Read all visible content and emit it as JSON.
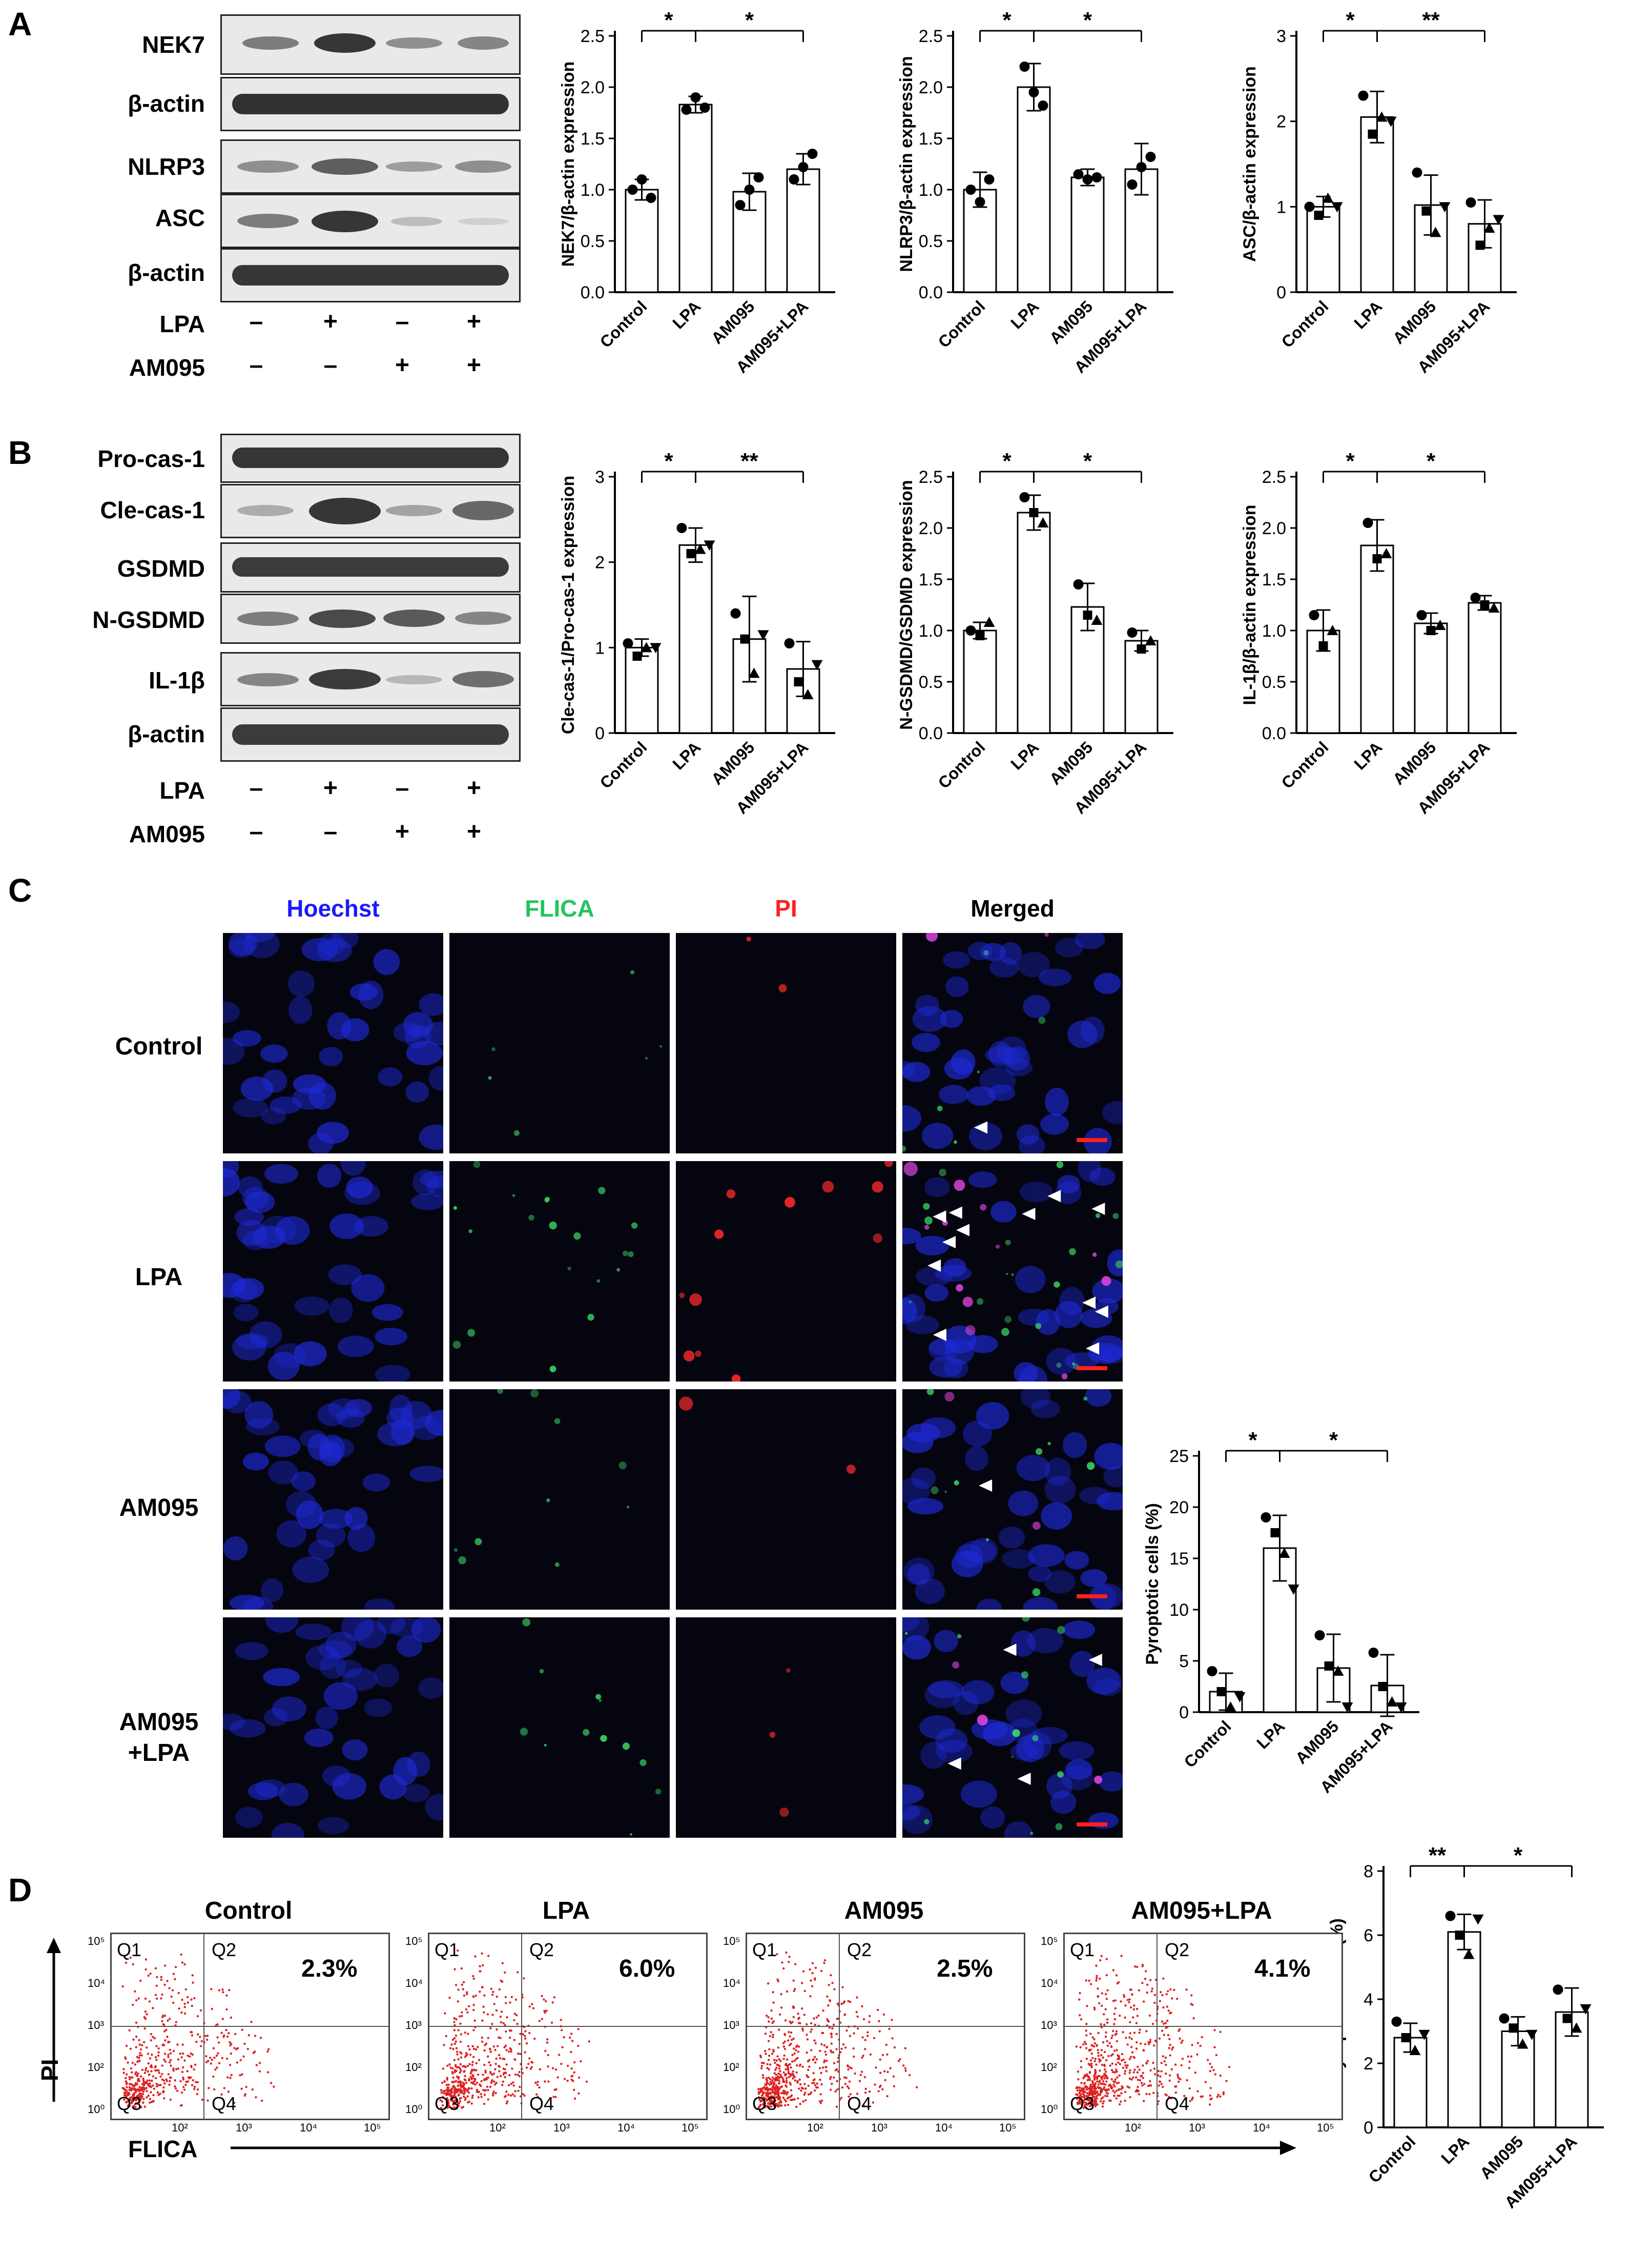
{
  "panels": {
    "a": "A",
    "b": "B",
    "c": "C",
    "d": "D"
  },
  "blot_a": {
    "proteins": [
      "NEK7",
      "β-actin",
      "NLRP3",
      "ASC",
      "β-actin"
    ],
    "treatments": [
      {
        "name": "LPA",
        "signs": [
          "–",
          "+",
          "–",
          "+"
        ]
      },
      {
        "name": "AM095",
        "signs": [
          "–",
          "–",
          "+",
          "+"
        ]
      }
    ]
  },
  "blot_b": {
    "proteins": [
      "Pro-cas-1",
      "Cle-cas-1",
      "GSDMD",
      "N-GSDMD",
      "IL-1β",
      "β-actin"
    ],
    "treatments": [
      {
        "name": "LPA",
        "signs": [
          "–",
          "+",
          "–",
          "+"
        ]
      },
      {
        "name": "AM095",
        "signs": [
          "–",
          "–",
          "+",
          "+"
        ]
      }
    ]
  },
  "chart_data": [
    {
      "type": "bar",
      "panel": "A",
      "categories": [
        "Control",
        "LPA",
        "AM095",
        "AM095+LPA"
      ],
      "values": [
        1.0,
        1.83,
        0.98,
        1.2
      ],
      "errors": [
        0.1,
        0.08,
        0.18,
        0.15
      ],
      "points": [
        [
          1.0,
          1.1,
          0.92
        ],
        [
          1.78,
          1.9,
          1.8
        ],
        [
          0.85,
          1.0,
          1.12
        ],
        [
          1.1,
          1.22,
          1.35
        ]
      ],
      "marker": "circle",
      "ylabel": "NEK7/β-actin expression",
      "ylim": [
        0,
        2.5
      ],
      "yticks": [
        "0.0",
        "0.5",
        "1.0",
        "1.5",
        "2.0",
        "2.5"
      ],
      "sig": [
        {
          "from": 0,
          "to": 1,
          "label": "*"
        },
        {
          "from": 1,
          "to": 3,
          "label": "*"
        }
      ]
    },
    {
      "type": "bar",
      "panel": "A",
      "categories": [
        "Control",
        "LPA",
        "AM095",
        "AM095+LPA"
      ],
      "values": [
        1.0,
        2.0,
        1.12,
        1.2
      ],
      "errors": [
        0.17,
        0.23,
        0.08,
        0.25
      ],
      "points": [
        [
          1.0,
          0.88,
          1.1
        ],
        [
          2.2,
          1.95,
          1.82
        ],
        [
          1.15,
          1.1,
          1.12
        ],
        [
          1.05,
          1.22,
          1.32
        ]
      ],
      "marker": "circle",
      "ylabel": "NLRP3/β-actin expression",
      "ylim": [
        0,
        2.5
      ],
      "yticks": [
        "0.0",
        "0.5",
        "1.0",
        "1.5",
        "2.0",
        "2.5"
      ],
      "sig": [
        {
          "from": 0,
          "to": 1,
          "label": "*"
        },
        {
          "from": 1,
          "to": 3,
          "label": "*"
        }
      ]
    },
    {
      "type": "bar",
      "panel": "A",
      "categories": [
        "Control",
        "LPA",
        "AM095",
        "AM095+LPA"
      ],
      "values": [
        1.0,
        2.05,
        1.02,
        0.8
      ],
      "errors": [
        0.12,
        0.3,
        0.35,
        0.28
      ],
      "points": [
        [
          1.0,
          0.9,
          1.1,
          1.0
        ],
        [
          2.3,
          1.85,
          2.05,
          2.0
        ],
        [
          1.4,
          0.95,
          0.7,
          1.0
        ],
        [
          1.05,
          0.55,
          0.75,
          0.85
        ]
      ],
      "marker": "mixed",
      "ylabel": "ASC/β-actin expression",
      "ylim": [
        0,
        3
      ],
      "yticks": [
        "0",
        "1",
        "2",
        "3"
      ],
      "sig": [
        {
          "from": 0,
          "to": 1,
          "label": "*"
        },
        {
          "from": 1,
          "to": 3,
          "label": "**"
        }
      ]
    },
    {
      "type": "bar",
      "panel": "B",
      "categories": [
        "Control",
        "LPA",
        "AM095",
        "AM095+LPA"
      ],
      "values": [
        1.0,
        2.2,
        1.1,
        0.75
      ],
      "errors": [
        0.1,
        0.2,
        0.5,
        0.32
      ],
      "points": [
        [
          1.05,
          0.9,
          1.0,
          1.0
        ],
        [
          2.4,
          2.1,
          2.15,
          2.2
        ],
        [
          1.4,
          1.1,
          0.7,
          1.15
        ],
        [
          1.05,
          0.6,
          0.45,
          0.8
        ]
      ],
      "marker": "mixed",
      "ylabel": "Cle-cas-1/Pro-cas-1 expression",
      "ylim": [
        0,
        3
      ],
      "yticks": [
        "0",
        "1",
        "2",
        "3"
      ],
      "sig": [
        {
          "from": 0,
          "to": 1,
          "label": "*"
        },
        {
          "from": 1,
          "to": 3,
          "label": "**"
        }
      ]
    },
    {
      "type": "bar",
      "panel": "B",
      "categories": [
        "Control",
        "LPA",
        "AM095",
        "AM095+LPA"
      ],
      "values": [
        1.0,
        2.15,
        1.23,
        0.9
      ],
      "errors": [
        0.08,
        0.17,
        0.23,
        0.1
      ],
      "points": [
        [
          1.0,
          0.95,
          1.08
        ],
        [
          2.3,
          2.15,
          2.05
        ],
        [
          1.45,
          1.15,
          1.1
        ],
        [
          0.98,
          0.82,
          0.9
        ]
      ],
      "marker": "mixed",
      "ylabel": "N-GSDMD/GSDMD expression",
      "ylim": [
        0,
        2.5
      ],
      "yticks": [
        "0.0",
        "0.5",
        "1.0",
        "1.5",
        "2.0",
        "2.5"
      ],
      "sig": [
        {
          "from": 0,
          "to": 1,
          "label": "*"
        },
        {
          "from": 1,
          "to": 3,
          "label": "*"
        }
      ]
    },
    {
      "type": "bar",
      "panel": "B",
      "categories": [
        "Control",
        "LPA",
        "AM095",
        "AM095+LPA"
      ],
      "values": [
        1.0,
        1.83,
        1.07,
        1.27
      ],
      "errors": [
        0.2,
        0.25,
        0.1,
        0.07
      ],
      "points": [
        [
          1.15,
          0.85,
          1.0
        ],
        [
          2.05,
          1.7,
          1.75
        ],
        [
          1.15,
          1.0,
          1.05
        ],
        [
          1.32,
          1.25,
          1.22
        ]
      ],
      "marker": "mixed",
      "ylabel": "IL-1β/β-actin expression",
      "ylim": [
        0,
        2.5
      ],
      "yticks": [
        "0.0",
        "0.5",
        "1.0",
        "1.5",
        "2.0",
        "2.5"
      ],
      "sig": [
        {
          "from": 0,
          "to": 1,
          "label": "*"
        },
        {
          "from": 1,
          "to": 3,
          "label": "*"
        }
      ]
    },
    {
      "type": "bar",
      "panel": "C",
      "categories": [
        "Control",
        "LPA",
        "AM095",
        "AM095+LPA"
      ],
      "values": [
        2.0,
        16.0,
        4.3,
        2.6
      ],
      "errors": [
        1.8,
        3.2,
        3.3,
        3.0
      ],
      "points": [
        [
          4.0,
          2.0,
          0.5,
          1.5
        ],
        [
          19.0,
          17.5,
          15.5,
          12.0
        ],
        [
          7.5,
          4.5,
          4.0,
          0.5
        ],
        [
          5.8,
          2.5,
          1.0,
          0.5
        ]
      ],
      "marker": "mixed",
      "ylabel": "Pyroptotic cells (%)",
      "ylim": [
        0,
        25
      ],
      "yticks": [
        "0",
        "5",
        "10",
        "15",
        "20",
        "25"
      ],
      "sig": [
        {
          "from": 0,
          "to": 1,
          "label": "*"
        },
        {
          "from": 1,
          "to": 3,
          "label": "*"
        }
      ]
    },
    {
      "type": "bar",
      "panel": "D",
      "categories": [
        "Control",
        "LPA",
        "AM095",
        "AM095+LPA"
      ],
      "values": [
        2.8,
        6.1,
        3.0,
        3.6
      ],
      "errors": [
        0.45,
        0.55,
        0.45,
        0.75
      ],
      "points": [
        [
          3.3,
          2.8,
          2.4,
          2.9
        ],
        [
          6.6,
          6.0,
          5.4,
          6.5
        ],
        [
          3.4,
          3.1,
          2.6,
          2.9
        ],
        [
          4.3,
          3.4,
          3.1,
          3.7
        ]
      ],
      "marker": "mixed",
      "ylabel": "Pyroptotic cells (%)",
      "ylim": [
        0,
        8
      ],
      "yticks": [
        "0",
        "2",
        "4",
        "6",
        "8"
      ],
      "sig": [
        {
          "from": 0,
          "to": 1,
          "label": "**"
        },
        {
          "from": 1,
          "to": 3,
          "label": "*"
        }
      ]
    }
  ],
  "microscopy": {
    "columns": [
      {
        "label": "Hoechst",
        "color": "#1a1aff"
      },
      {
        "label": "FLICA",
        "color": "#22c55e"
      },
      {
        "label": "PI",
        "color": "#ff2020"
      },
      {
        "label": "Merged",
        "color": "#000000"
      }
    ],
    "rows": [
      {
        "label": "Control"
      },
      {
        "label": "LPA"
      },
      {
        "label": "AM095"
      },
      {
        "label": "AM095\n+LPA"
      }
    ]
  },
  "flow": {
    "axis_y": "PI",
    "axis_x": "FLICA",
    "plots": [
      {
        "title": "Control",
        "pct": "2.3%"
      },
      {
        "title": "LPA",
        "pct": "6.0%"
      },
      {
        "title": "AM095",
        "pct": "2.5%"
      },
      {
        "title": "AM095+LPA",
        "pct": "4.1%"
      }
    ],
    "quadrants": [
      "Q1",
      "Q2",
      "Q3",
      "Q4"
    ],
    "y_ticks": [
      "10⁵",
      "10⁴",
      "10³",
      "10²",
      "10⁰"
    ],
    "x_ticks": [
      "10²",
      "10³",
      "10⁴",
      "10⁵"
    ]
  },
  "colors": {
    "bar_fill": "#ffffff",
    "axis": "#000000",
    "scatter": "#dd2222",
    "scale_bar": "#ff2020",
    "arrowhead": "#ffffff"
  }
}
